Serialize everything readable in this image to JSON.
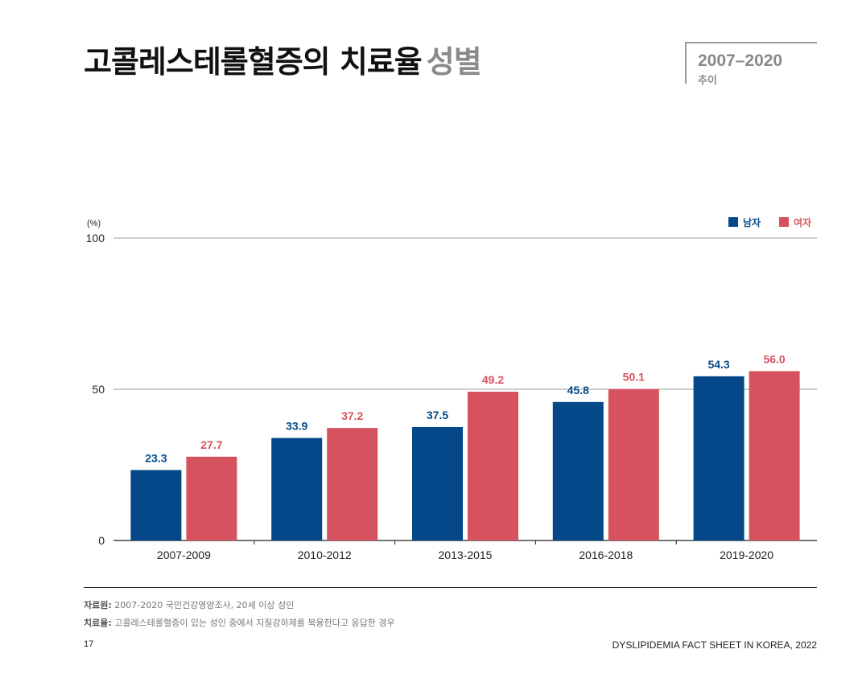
{
  "header": {
    "title": "고콜레스테롤혈증의 치료율",
    "subtitle": "성별",
    "period": "2007–2020",
    "period_note": "추이"
  },
  "chart_data": {
    "type": "bar",
    "title": "",
    "xlabel": "",
    "ylabel": "(%)",
    "ylim": [
      0,
      100
    ],
    "yticks": [
      0,
      50,
      100
    ],
    "grid": true,
    "legend_position": "top-right",
    "categories": [
      "2007-2009",
      "2010-2012",
      "2013-2015",
      "2016-2018",
      "2019-2020"
    ],
    "series": [
      {
        "name": "남자",
        "color": "#054889",
        "values": [
          23.3,
          33.9,
          37.5,
          45.8,
          54.3
        ]
      },
      {
        "name": "여자",
        "color": "#d6525f",
        "values": [
          27.7,
          37.2,
          49.2,
          50.1,
          56.0
        ]
      }
    ]
  },
  "notes": {
    "source_label": "자료원:",
    "source_text": "2007-2020 국민건강영양조사, 20세 이상 성인",
    "definition_label": "치료율:",
    "definition_text": "고콜레스테롤혈증이 있는 성인 중에서 지질강하제를 복용한다고 응답한 경우"
  },
  "footer": {
    "page_number": "17",
    "publication": "DYSLIPIDEMIA FACT SHEET IN KOREA, 2022"
  }
}
